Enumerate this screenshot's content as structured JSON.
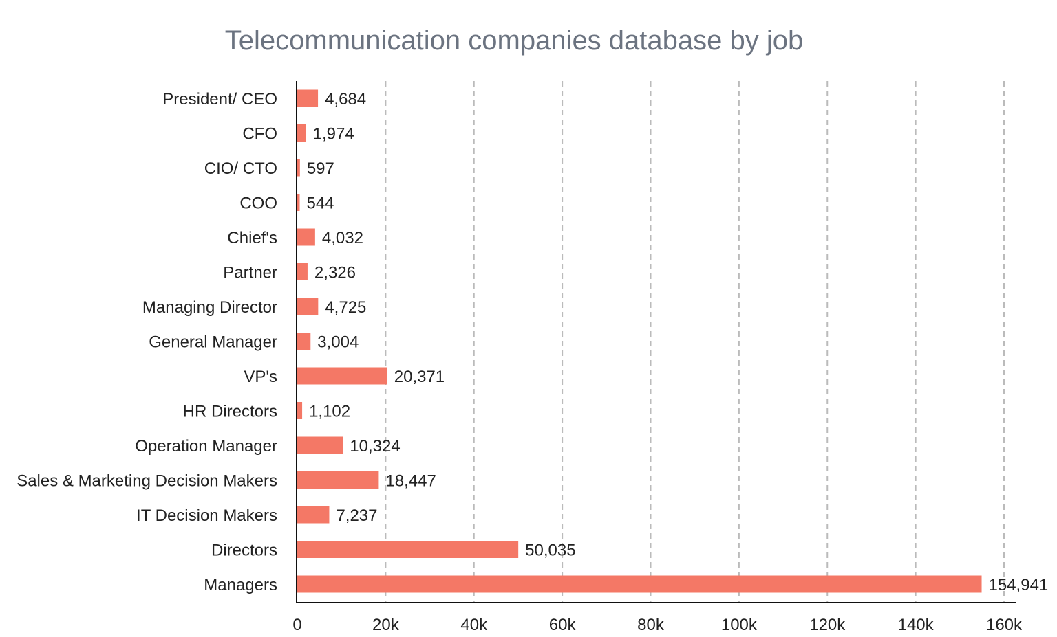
{
  "chart_data": {
    "type": "bar",
    "orientation": "horizontal",
    "title": "Telecommunication companies database by job",
    "categories": [
      "President/ CEO",
      "CFO",
      "CIO/ CTO",
      "COO",
      "Chief's",
      "Partner",
      "Managing Director",
      "General Manager",
      "VP's",
      "HR Directors",
      "Operation Manager",
      "Sales & Marketing Decision Makers",
      "IT Decision Makers",
      "Directors",
      "Managers"
    ],
    "values": [
      4684,
      1974,
      597,
      544,
      4032,
      2326,
      4725,
      3004,
      20371,
      1102,
      10324,
      18447,
      7237,
      50035,
      154941
    ],
    "value_labels": [
      "4,684",
      "1,974",
      "597",
      "544",
      "4,032",
      "2,326",
      "4,725",
      "3,004",
      "20,371",
      "1,102",
      "10,324",
      "18,447",
      "7,237",
      "50,035",
      "154,941"
    ],
    "xlim": [
      0,
      160000
    ],
    "x_ticks": [
      0,
      20000,
      40000,
      60000,
      80000,
      100000,
      120000,
      140000,
      160000
    ],
    "x_tick_labels": [
      "0",
      "20k",
      "40k",
      "60k",
      "80k",
      "100k",
      "120k",
      "140k",
      "160k"
    ],
    "xlabel": "",
    "ylabel": "",
    "grid": "vertical dashed",
    "bar_color": "#f47866",
    "grid_color": "#bbbbbb"
  }
}
